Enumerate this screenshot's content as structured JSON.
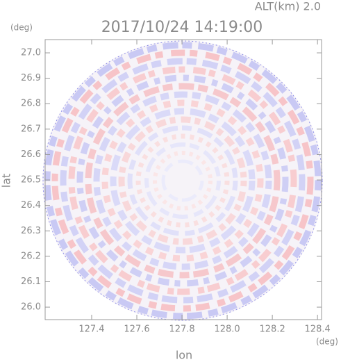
{
  "chart_data": {
    "type": "radar-ppi",
    "title": "2017/10/24 14:19:00",
    "subtitle": "ALT(km) 2.0",
    "x_label": "lon",
    "y_label": "lat",
    "x_unit": "(deg)",
    "y_unit": "(deg)",
    "xlim": [
      127.194,
      128.418
    ],
    "ylim": [
      25.951,
      27.052
    ],
    "xticks": [
      127.4,
      127.6,
      127.8,
      {
        "value": 128,
        "label": "128.0"
      },
      128.2,
      128.4
    ],
    "yticks": [
      {
        "value": 26,
        "label": "26.0"
      },
      26.1,
      26.2,
      26.3,
      26.4,
      26.5,
      26.6,
      26.7,
      26.8,
      26.9,
      {
        "value": 27,
        "label": "27.0"
      }
    ]
  }
}
